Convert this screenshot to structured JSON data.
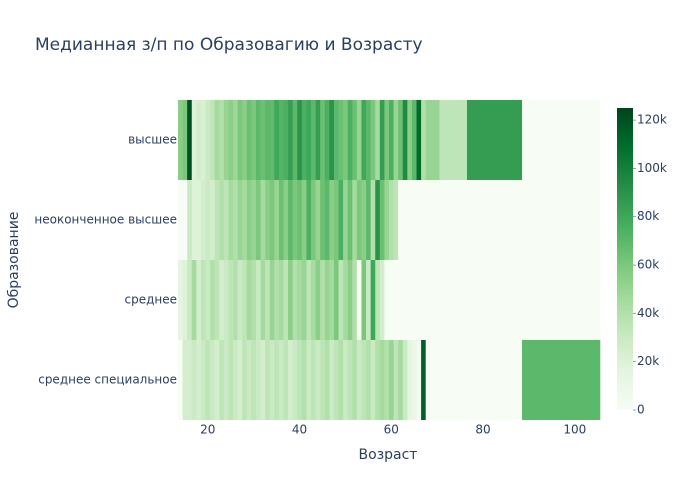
{
  "chart_data": {
    "type": "heatmap",
    "title": "Медианная з/п по Образовагию и Возрасту",
    "x_label": "Возраст",
    "y_label": "Образование",
    "categories": [
      "высшее",
      "неоконченное высшее",
      "среднее",
      "среднее специальное"
    ],
    "x": [
      14,
      15,
      16,
      17,
      18,
      19,
      20,
      21,
      22,
      23,
      24,
      25,
      26,
      27,
      28,
      29,
      30,
      31,
      32,
      33,
      34,
      35,
      36,
      37,
      38,
      39,
      40,
      41,
      42,
      43,
      44,
      45,
      46,
      47,
      48,
      49,
      50,
      51,
      52,
      53,
      54,
      55,
      56,
      57,
      58,
      59,
      60,
      61,
      62,
      63,
      64,
      65,
      66,
      67,
      68,
      73,
      80,
      97
    ],
    "z": [
      [
        55000,
        60000,
        120000,
        20000,
        25000,
        22000,
        30000,
        35000,
        45000,
        40000,
        50000,
        55000,
        48000,
        60000,
        55000,
        65000,
        60000,
        70000,
        65000,
        70000,
        68000,
        80000,
        72000,
        75000,
        85000,
        70000,
        90000,
        75000,
        80000,
        70000,
        85000,
        65000,
        75000,
        90000,
        70000,
        65000,
        60000,
        75000,
        65000,
        50000,
        80000,
        70000,
        60000,
        45000,
        85000,
        60000,
        75000,
        50000,
        65000,
        95000,
        55000,
        70000,
        110000,
        40000,
        50000,
        35000,
        85000,
        0
      ],
      [
        0,
        0,
        30000,
        20000,
        20000,
        25000,
        30000,
        25000,
        35000,
        40000,
        35000,
        45000,
        40000,
        50000,
        45000,
        55000,
        50000,
        60000,
        45000,
        55000,
        60000,
        50000,
        65000,
        55000,
        70000,
        60000,
        65000,
        55000,
        75000,
        60000,
        50000,
        65000,
        70000,
        55000,
        60000,
        75000,
        50000,
        65000,
        45000,
        60000,
        55000,
        70000,
        40000,
        90000,
        65000,
        50000,
        40000,
        35000,
        0,
        0,
        0,
        0,
        0,
        0,
        0,
        0,
        0,
        0
      ],
      [
        15000,
        20000,
        30000,
        45000,
        25000,
        35000,
        30000,
        40000,
        35000,
        25000,
        30000,
        35000,
        40000,
        30000,
        35000,
        45000,
        40000,
        30000,
        45000,
        35000,
        50000,
        40000,
        45000,
        35000,
        55000,
        40000,
        45000,
        50000,
        35000,
        45000,
        55000,
        40000,
        50000,
        45000,
        60000,
        35000,
        45000,
        55000,
        40000,
        0,
        60000,
        30000,
        80000,
        35000,
        25000,
        0,
        0,
        0,
        0,
        0,
        0,
        0,
        0,
        0,
        0,
        0,
        0,
        0
      ],
      [
        0,
        25000,
        25000,
        30000,
        25000,
        30000,
        35000,
        30000,
        25000,
        35000,
        30000,
        35000,
        30000,
        25000,
        35000,
        30000,
        35000,
        30000,
        25000,
        35000,
        30000,
        35000,
        30000,
        35000,
        25000,
        30000,
        35000,
        40000,
        30000,
        35000,
        30000,
        35000,
        40000,
        30000,
        35000,
        40000,
        30000,
        35000,
        40000,
        30000,
        35000,
        40000,
        30000,
        40000,
        45000,
        40000,
        50000,
        35000,
        45000,
        30000,
        15000,
        10000,
        5000,
        115000,
        0,
        0,
        0,
        70000
      ]
    ],
    "xlim": [
      13.5,
      105.5
    ],
    "xticks": [
      20,
      40,
      60,
      80,
      100
    ],
    "zlim": [
      0,
      125000
    ],
    "colorbar_ticks": [
      0,
      {
        "value": 20000,
        "label": "20k"
      },
      {
        "value": 40000,
        "label": "40k"
      },
      {
        "value": 60000,
        "label": "60k"
      },
      {
        "value": 80000,
        "label": "80k"
      },
      {
        "value": 100000,
        "label": "100k"
      },
      {
        "value": 120000,
        "label": "120k"
      }
    ],
    "colorscale": [
      [
        0,
        "#f7fcf5"
      ],
      [
        0.125,
        "#e5f5e0"
      ],
      [
        0.25,
        "#c7e9c0"
      ],
      [
        0.375,
        "#a1d99b"
      ],
      [
        0.5,
        "#74c476"
      ],
      [
        0.625,
        "#41ab5d"
      ],
      [
        0.75,
        "#238b45"
      ],
      [
        0.875,
        "#006d2c"
      ],
      [
        1,
        "#00441b"
      ]
    ]
  }
}
